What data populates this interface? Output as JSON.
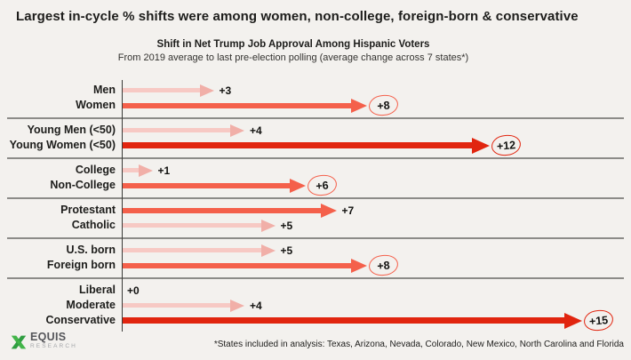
{
  "page": {
    "background": "#f3f1ee"
  },
  "header": {
    "title": "Largest in-cycle % shifts were among women, non-college, foreign-born & conservative"
  },
  "chart": {
    "title": "Shift in Net Trump Job Approval Among Hispanic Voters",
    "subtitle": "From 2019 average to last pre-election polling (average change across 7 states*)",
    "footnote": "*States included in analysis: Texas, Arizona, Nevada, Colorado, New Mexico, North Carolina and Florida"
  },
  "chart_data": {
    "type": "bar",
    "orientation": "horizontal-arrow",
    "title": "Shift in Net Trump Job Approval Among Hispanic Voters",
    "subtitle": "From 2019 average to last pre-election polling (average change across 7 states*)",
    "unit": "net approval percentage points",
    "xlim": [
      0,
      16
    ],
    "grid": false,
    "legend": "none",
    "colors": {
      "light": "#f7c9c4",
      "light_head": "#f1afa8",
      "medium": "#f4604b",
      "strong": "#e1250f",
      "divider": "#8c8b88",
      "axis": "#3a3a37"
    },
    "groups": [
      {
        "rows": [
          {
            "label": "Men",
            "value": 3,
            "value_label": "+3",
            "emphasis": "light",
            "circled": false
          },
          {
            "label": "Women",
            "value": 8,
            "value_label": "+8",
            "emphasis": "medium",
            "circled": true
          }
        ]
      },
      {
        "rows": [
          {
            "label": "Young Men (<50)",
            "value": 4,
            "value_label": "+4",
            "emphasis": "light",
            "circled": false
          },
          {
            "label": "Young Women (<50)",
            "value": 12,
            "value_label": "+12",
            "emphasis": "strong",
            "circled": true
          }
        ]
      },
      {
        "rows": [
          {
            "label": "College",
            "value": 1,
            "value_label": "+1",
            "emphasis": "light",
            "circled": false
          },
          {
            "label": "Non-College",
            "value": 6,
            "value_label": "+6",
            "emphasis": "medium",
            "circled": true
          }
        ]
      },
      {
        "rows": [
          {
            "label": "Protestant",
            "value": 7,
            "value_label": "+7",
            "emphasis": "medium",
            "circled": false
          },
          {
            "label": "Catholic",
            "value": 5,
            "value_label": "+5",
            "emphasis": "light",
            "circled": false
          }
        ]
      },
      {
        "rows": [
          {
            "label": "U.S. born",
            "value": 5,
            "value_label": "+5",
            "emphasis": "light",
            "circled": false
          },
          {
            "label": "Foreign born",
            "value": 8,
            "value_label": "+8",
            "emphasis": "medium",
            "circled": true
          }
        ]
      },
      {
        "rows": [
          {
            "label": "Liberal",
            "value": 0,
            "value_label": "+0",
            "emphasis": "light",
            "circled": false
          },
          {
            "label": "Moderate",
            "value": 4,
            "value_label": "+4",
            "emphasis": "light",
            "circled": false
          },
          {
            "label": "Conservative",
            "value": 15,
            "value_label": "+15",
            "emphasis": "strong",
            "circled": true
          }
        ]
      }
    ]
  },
  "logo": {
    "name": "EQUIS",
    "sub": "RESEARCH"
  }
}
